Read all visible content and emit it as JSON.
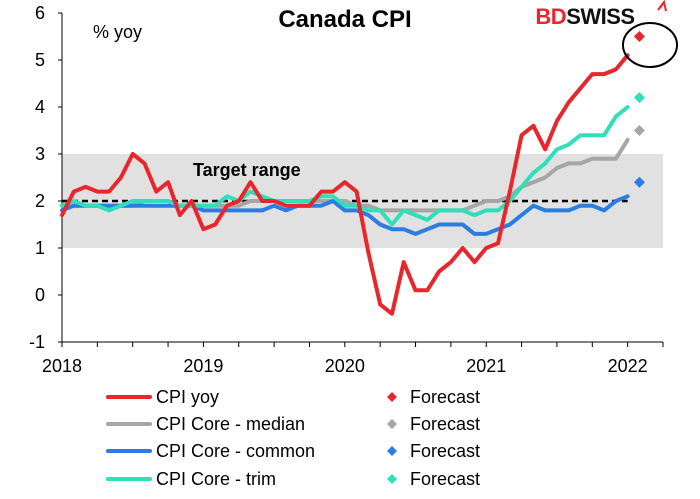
{
  "colors": {
    "cpi_yoy": "#e8262b",
    "core_median": "#a6a6a6",
    "core_common": "#2a7de1",
    "core_trim": "#2ee0b8",
    "band": "#e1e1e1",
    "target": "#000000",
    "brand_red": "#e8262b",
    "brand_dark": "#111111"
  },
  "brand": {
    "part1": "BD",
    "part2": "SWISS"
  },
  "chart_data": {
    "type": "line",
    "title": "Canada CPI",
    "ylabel": "% yoy",
    "xlabel": "",
    "ylim": [
      -1,
      6
    ],
    "yticks": [
      "-1",
      "0",
      "1",
      "2",
      "3",
      "4",
      "5",
      "6"
    ],
    "xlim": [
      2018.0,
      2022.25
    ],
    "xticks": [
      {
        "label": "2018",
        "value": 2018.0
      },
      {
        "label": "2019",
        "value": 2019.0
      },
      {
        "label": "2020",
        "value": 2020.0
      },
      {
        "label": "2021",
        "value": 2021.0
      },
      {
        "label": "2022",
        "value": 2022.0
      }
    ],
    "target_band": [
      1,
      3
    ],
    "target_line": 2,
    "annotation": "Target range",
    "x": [
      2018.0,
      2018.0833,
      2018.1667,
      2018.25,
      2018.3333,
      2018.4167,
      2018.5,
      2018.5833,
      2018.6667,
      2018.75,
      2018.8333,
      2018.9167,
      2019.0,
      2019.0833,
      2019.1667,
      2019.25,
      2019.3333,
      2019.4167,
      2019.5,
      2019.5833,
      2019.6667,
      2019.75,
      2019.8333,
      2019.9167,
      2020.0,
      2020.0833,
      2020.1667,
      2020.25,
      2020.3333,
      2020.4167,
      2020.5,
      2020.5833,
      2020.6667,
      2020.75,
      2020.8333,
      2020.9167,
      2021.0,
      2021.0833,
      2021.1667,
      2021.25,
      2021.3333,
      2021.4167,
      2021.5,
      2021.5833,
      2021.6667,
      2021.75,
      2021.8333,
      2021.9167,
      2022.0
    ],
    "series": [
      {
        "name": "CPI yoy",
        "values": [
          1.7,
          2.2,
          2.3,
          2.2,
          2.2,
          2.5,
          3.0,
          2.8,
          2.2,
          2.4,
          1.7,
          2.0,
          1.4,
          1.5,
          1.9,
          2.0,
          2.4,
          2.0,
          2.0,
          1.9,
          1.9,
          1.9,
          2.2,
          2.2,
          2.4,
          2.2,
          0.9,
          -0.2,
          -0.4,
          0.7,
          0.1,
          0.1,
          0.5,
          0.7,
          1.0,
          0.7,
          1.0,
          1.1,
          2.2,
          3.4,
          3.6,
          3.1,
          3.7,
          4.1,
          4.4,
          4.7,
          4.7,
          4.8,
          5.1
        ],
        "forecast": {
          "label": "Forecast",
          "x": 2022.0833,
          "value": 5.5
        }
      },
      {
        "name": "CPI Core - median",
        "values": [
          1.9,
          1.9,
          1.9,
          1.9,
          1.9,
          1.9,
          1.9,
          2.0,
          2.0,
          2.0,
          1.9,
          1.9,
          1.9,
          1.9,
          1.9,
          1.9,
          2.0,
          2.0,
          2.0,
          2.0,
          2.0,
          2.0,
          2.0,
          2.0,
          2.0,
          1.9,
          1.9,
          1.8,
          1.8,
          1.8,
          1.8,
          1.8,
          1.8,
          1.8,
          1.8,
          1.9,
          2.0,
          2.0,
          2.1,
          2.3,
          2.4,
          2.5,
          2.7,
          2.8,
          2.8,
          2.9,
          2.9,
          2.9,
          3.3
        ],
        "forecast": {
          "label": "Forecast",
          "x": 2022.0833,
          "value": 3.5
        }
      },
      {
        "name": "CPI Core - common",
        "values": [
          1.8,
          1.9,
          1.9,
          1.9,
          1.9,
          1.9,
          1.9,
          1.9,
          1.9,
          1.9,
          1.9,
          1.9,
          1.8,
          1.8,
          1.8,
          1.8,
          1.8,
          1.8,
          1.9,
          1.8,
          1.9,
          1.9,
          1.9,
          2.0,
          1.8,
          1.8,
          1.7,
          1.5,
          1.4,
          1.4,
          1.3,
          1.4,
          1.5,
          1.5,
          1.5,
          1.3,
          1.3,
          1.4,
          1.5,
          1.7,
          1.9,
          1.8,
          1.8,
          1.8,
          1.9,
          1.9,
          1.8,
          2.0,
          2.1
        ],
        "forecast": {
          "label": "Forecast",
          "x": 2022.0833,
          "value": 2.4
        }
      },
      {
        "name": "CPI Core - trim",
        "values": [
          1.9,
          2.0,
          1.9,
          1.9,
          1.8,
          1.9,
          2.0,
          2.0,
          2.0,
          2.0,
          1.9,
          1.9,
          1.9,
          1.9,
          2.1,
          2.0,
          2.2,
          2.1,
          2.0,
          2.0,
          2.0,
          2.0,
          2.1,
          2.1,
          1.9,
          1.9,
          1.8,
          1.8,
          1.5,
          1.8,
          1.7,
          1.6,
          1.8,
          1.8,
          1.8,
          1.7,
          1.8,
          1.8,
          2.0,
          2.3,
          2.6,
          2.8,
          3.1,
          3.2,
          3.4,
          3.4,
          3.4,
          3.8,
          4.0
        ],
        "forecast": {
          "label": "Forecast",
          "x": 2022.0833,
          "value": 4.2
        }
      }
    ]
  }
}
